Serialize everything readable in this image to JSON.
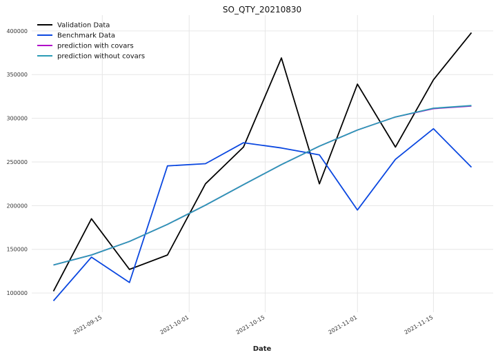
{
  "chart_data": {
    "type": "line",
    "title": "SO_QTY_20210830",
    "xlabel": "Date",
    "ylabel": "",
    "x_dates": [
      "2021-09-06",
      "2021-09-13",
      "2021-09-20",
      "2021-09-27",
      "2021-10-04",
      "2021-10-11",
      "2021-10-18",
      "2021-10-25",
      "2021-11-01",
      "2021-11-08",
      "2021-11-15",
      "2021-11-22"
    ],
    "xlim": [
      "2021-09-02",
      "2021-11-26"
    ],
    "ylim": [
      78000,
      418000
    ],
    "x_ticks": [
      {
        "date": "2021-09-15",
        "label": "2021-09-15"
      },
      {
        "date": "2021-10-01",
        "label": "2021-10-01"
      },
      {
        "date": "2021-10-15",
        "label": "2021-10-15"
      },
      {
        "date": "2021-11-01",
        "label": "2021-11-01"
      },
      {
        "date": "2021-11-15",
        "label": "2021-11-15"
      }
    ],
    "y_ticks": [
      {
        "value": 100000,
        "label": "100000"
      },
      {
        "value": 150000,
        "label": "150000"
      },
      {
        "value": 200000,
        "label": "200000"
      },
      {
        "value": 250000,
        "label": "250000"
      },
      {
        "value": 300000,
        "label": "300000"
      },
      {
        "value": 350000,
        "label": "350000"
      },
      {
        "value": 400000,
        "label": "400000"
      }
    ],
    "grid": true,
    "legend_position": "top-left",
    "series": [
      {
        "name": "Validation Data",
        "color": "#000000",
        "values": [
          102000,
          185000,
          127000,
          143500,
          225000,
          267000,
          369000,
          225000,
          339000,
          267000,
          344000,
          398000
        ]
      },
      {
        "name": "Benchmark Data",
        "color": "#0a47e0",
        "values": [
          91000,
          141000,
          112000,
          245500,
          248000,
          272000,
          266000,
          258000,
          195000,
          253000,
          288000,
          244000
        ]
      },
      {
        "name": "prediction with covars",
        "color": "#b000c8",
        "values": [
          132000,
          143500,
          159000,
          178500,
          200500,
          224000,
          247000,
          268000,
          286500,
          301500,
          311000,
          314000
        ]
      },
      {
        "name": "prediction without covars",
        "color": "#2a9bb5",
        "values": [
          132000,
          143500,
          159000,
          178500,
          200500,
          224000,
          247000,
          268000,
          286500,
          301500,
          311500,
          314500
        ]
      }
    ]
  }
}
